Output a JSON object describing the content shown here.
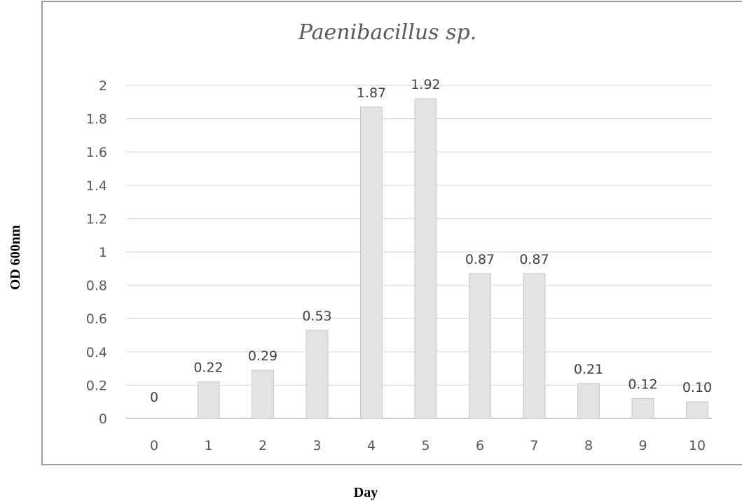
{
  "chart_data": {
    "type": "bar",
    "title": "Paenibacillus sp.",
    "xlabel": "Day",
    "ylabel": "OD 600nm",
    "categories": [
      "0",
      "1",
      "2",
      "3",
      "4",
      "5",
      "6",
      "7",
      "8",
      "9",
      "10"
    ],
    "values": [
      0,
      0.22,
      0.29,
      0.53,
      1.87,
      1.92,
      0.87,
      0.87,
      0.21,
      0.12,
      0.1
    ],
    "data_labels": [
      "0",
      "0.22",
      "0.29",
      "0.53",
      "1.87",
      "1.92",
      "0.87",
      "0.87",
      "0.21",
      "0.12",
      "0.10"
    ],
    "ylim": [
      0,
      2
    ],
    "yticks": [
      "0",
      "0.2",
      "0.4",
      "0.6",
      "0.8",
      "1",
      "1.2",
      "1.4",
      "1.6",
      "1.8",
      "2"
    ],
    "grid": true,
    "legend": "none",
    "colors": {
      "bar_fill": "#e3e3e3",
      "bar_stroke": "#c8c8c8",
      "grid": "#d9d9d9",
      "frame": "#7f7f7f"
    }
  }
}
